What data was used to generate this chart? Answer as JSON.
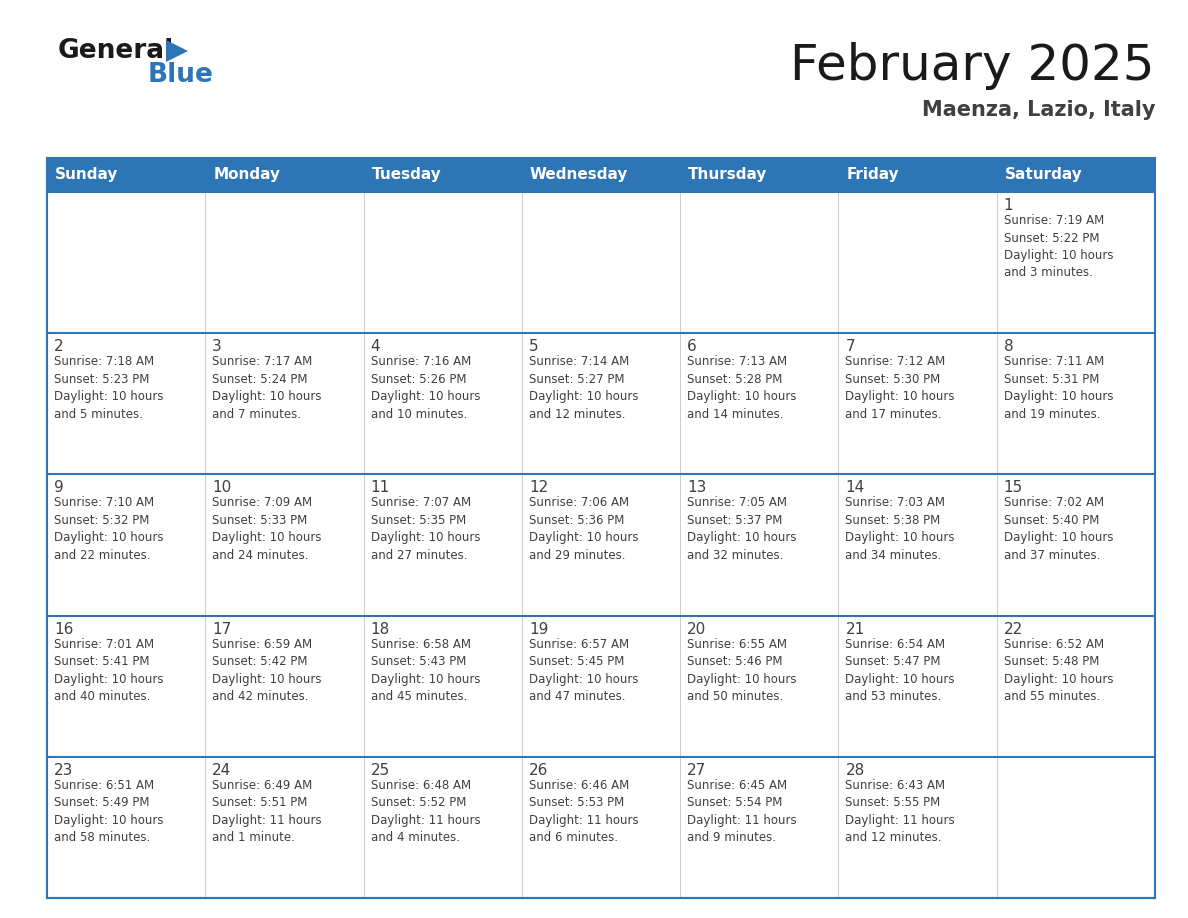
{
  "title": "February 2025",
  "subtitle": "Maenza, Lazio, Italy",
  "header_bg": "#2e75b6",
  "header_text_color": "#ffffff",
  "cell_bg": "#ffffff",
  "border_color": "#2e75b6",
  "row_border_color": "#2e75b6",
  "day_number_color": "#404040",
  "cell_text_color": "#404040",
  "days_of_week": [
    "Sunday",
    "Monday",
    "Tuesday",
    "Wednesday",
    "Thursday",
    "Friday",
    "Saturday"
  ],
  "weeks": [
    [
      {
        "day": null,
        "info": null
      },
      {
        "day": null,
        "info": null
      },
      {
        "day": null,
        "info": null
      },
      {
        "day": null,
        "info": null
      },
      {
        "day": null,
        "info": null
      },
      {
        "day": null,
        "info": null
      },
      {
        "day": 1,
        "info": "Sunrise: 7:19 AM\nSunset: 5:22 PM\nDaylight: 10 hours\nand 3 minutes."
      }
    ],
    [
      {
        "day": 2,
        "info": "Sunrise: 7:18 AM\nSunset: 5:23 PM\nDaylight: 10 hours\nand 5 minutes."
      },
      {
        "day": 3,
        "info": "Sunrise: 7:17 AM\nSunset: 5:24 PM\nDaylight: 10 hours\nand 7 minutes."
      },
      {
        "day": 4,
        "info": "Sunrise: 7:16 AM\nSunset: 5:26 PM\nDaylight: 10 hours\nand 10 minutes."
      },
      {
        "day": 5,
        "info": "Sunrise: 7:14 AM\nSunset: 5:27 PM\nDaylight: 10 hours\nand 12 minutes."
      },
      {
        "day": 6,
        "info": "Sunrise: 7:13 AM\nSunset: 5:28 PM\nDaylight: 10 hours\nand 14 minutes."
      },
      {
        "day": 7,
        "info": "Sunrise: 7:12 AM\nSunset: 5:30 PM\nDaylight: 10 hours\nand 17 minutes."
      },
      {
        "day": 8,
        "info": "Sunrise: 7:11 AM\nSunset: 5:31 PM\nDaylight: 10 hours\nand 19 minutes."
      }
    ],
    [
      {
        "day": 9,
        "info": "Sunrise: 7:10 AM\nSunset: 5:32 PM\nDaylight: 10 hours\nand 22 minutes."
      },
      {
        "day": 10,
        "info": "Sunrise: 7:09 AM\nSunset: 5:33 PM\nDaylight: 10 hours\nand 24 minutes."
      },
      {
        "day": 11,
        "info": "Sunrise: 7:07 AM\nSunset: 5:35 PM\nDaylight: 10 hours\nand 27 minutes."
      },
      {
        "day": 12,
        "info": "Sunrise: 7:06 AM\nSunset: 5:36 PM\nDaylight: 10 hours\nand 29 minutes."
      },
      {
        "day": 13,
        "info": "Sunrise: 7:05 AM\nSunset: 5:37 PM\nDaylight: 10 hours\nand 32 minutes."
      },
      {
        "day": 14,
        "info": "Sunrise: 7:03 AM\nSunset: 5:38 PM\nDaylight: 10 hours\nand 34 minutes."
      },
      {
        "day": 15,
        "info": "Sunrise: 7:02 AM\nSunset: 5:40 PM\nDaylight: 10 hours\nand 37 minutes."
      }
    ],
    [
      {
        "day": 16,
        "info": "Sunrise: 7:01 AM\nSunset: 5:41 PM\nDaylight: 10 hours\nand 40 minutes."
      },
      {
        "day": 17,
        "info": "Sunrise: 6:59 AM\nSunset: 5:42 PM\nDaylight: 10 hours\nand 42 minutes."
      },
      {
        "day": 18,
        "info": "Sunrise: 6:58 AM\nSunset: 5:43 PM\nDaylight: 10 hours\nand 45 minutes."
      },
      {
        "day": 19,
        "info": "Sunrise: 6:57 AM\nSunset: 5:45 PM\nDaylight: 10 hours\nand 47 minutes."
      },
      {
        "day": 20,
        "info": "Sunrise: 6:55 AM\nSunset: 5:46 PM\nDaylight: 10 hours\nand 50 minutes."
      },
      {
        "day": 21,
        "info": "Sunrise: 6:54 AM\nSunset: 5:47 PM\nDaylight: 10 hours\nand 53 minutes."
      },
      {
        "day": 22,
        "info": "Sunrise: 6:52 AM\nSunset: 5:48 PM\nDaylight: 10 hours\nand 55 minutes."
      }
    ],
    [
      {
        "day": 23,
        "info": "Sunrise: 6:51 AM\nSunset: 5:49 PM\nDaylight: 10 hours\nand 58 minutes."
      },
      {
        "day": 24,
        "info": "Sunrise: 6:49 AM\nSunset: 5:51 PM\nDaylight: 11 hours\nand 1 minute."
      },
      {
        "day": 25,
        "info": "Sunrise: 6:48 AM\nSunset: 5:52 PM\nDaylight: 11 hours\nand 4 minutes."
      },
      {
        "day": 26,
        "info": "Sunrise: 6:46 AM\nSunset: 5:53 PM\nDaylight: 11 hours\nand 6 minutes."
      },
      {
        "day": 27,
        "info": "Sunrise: 6:45 AM\nSunset: 5:54 PM\nDaylight: 11 hours\nand 9 minutes."
      },
      {
        "day": 28,
        "info": "Sunrise: 6:43 AM\nSunset: 5:55 PM\nDaylight: 11 hours\nand 12 minutes."
      },
      {
        "day": null,
        "info": null
      }
    ]
  ],
  "logo_color_general": "#1a1a1a",
  "logo_color_blue": "#2e75b6",
  "title_fontsize": 36,
  "subtitle_fontsize": 15,
  "header_fontsize": 11,
  "day_number_fontsize": 11,
  "cell_text_fontsize": 8.5
}
